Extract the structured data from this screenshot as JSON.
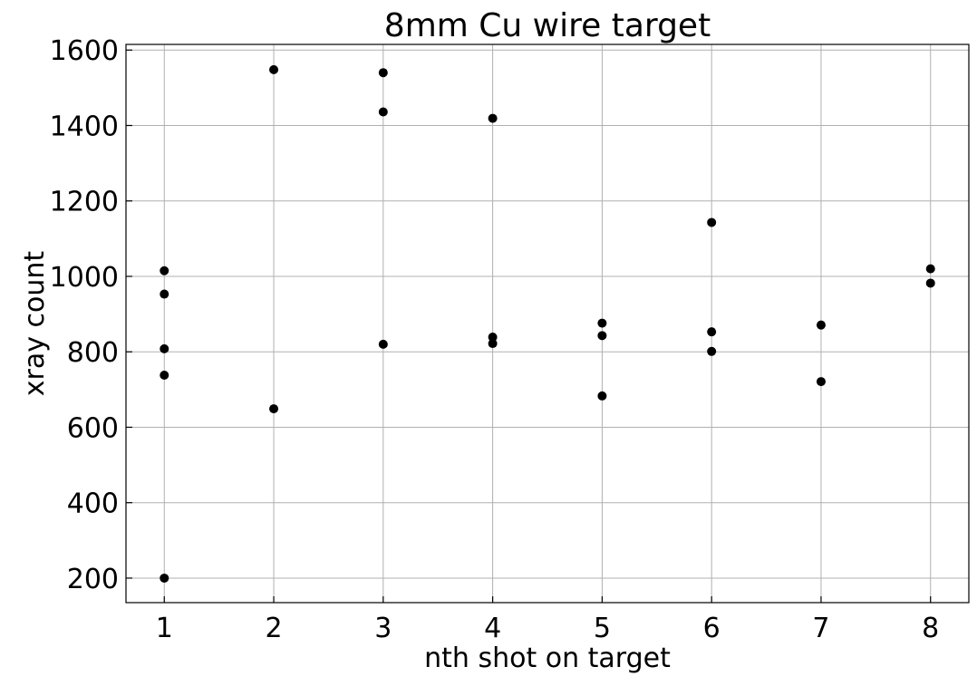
{
  "chart_data": {
    "type": "scatter",
    "title": "8mm Cu wire target",
    "xlabel": "nth shot on target",
    "ylabel": "xray count",
    "xlim": [
      0.65,
      8.35
    ],
    "ylim": [
      135,
      1615
    ],
    "xticks": [
      1,
      2,
      3,
      4,
      5,
      6,
      7,
      8
    ],
    "yticks": [
      200,
      400,
      600,
      800,
      1000,
      1200,
      1400,
      1600
    ],
    "grid": true,
    "marker_color": "#000000",
    "points": [
      {
        "x": 1,
        "y": 1015
      },
      {
        "x": 1,
        "y": 953
      },
      {
        "x": 1,
        "y": 808
      },
      {
        "x": 1,
        "y": 738
      },
      {
        "x": 1,
        "y": 200
      },
      {
        "x": 2,
        "y": 1548
      },
      {
        "x": 2,
        "y": 649
      },
      {
        "x": 3,
        "y": 1540
      },
      {
        "x": 3,
        "y": 1436
      },
      {
        "x": 3,
        "y": 820
      },
      {
        "x": 4,
        "y": 1419
      },
      {
        "x": 4,
        "y": 839
      },
      {
        "x": 4,
        "y": 822
      },
      {
        "x": 5,
        "y": 876
      },
      {
        "x": 5,
        "y": 843
      },
      {
        "x": 5,
        "y": 683
      },
      {
        "x": 6,
        "y": 1143
      },
      {
        "x": 6,
        "y": 853
      },
      {
        "x": 6,
        "y": 801
      },
      {
        "x": 7,
        "y": 871
      },
      {
        "x": 7,
        "y": 721
      },
      {
        "x": 8,
        "y": 1020
      },
      {
        "x": 8,
        "y": 982
      }
    ]
  }
}
